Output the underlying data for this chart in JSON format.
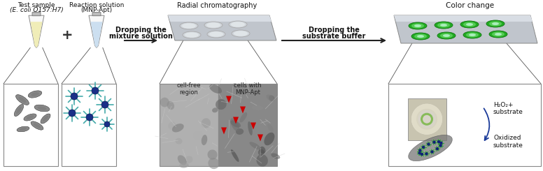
{
  "background_color": "#ffffff",
  "labels": {
    "test_sample_line1": "Test sample",
    "test_sample_line2": "(E. coli O157:H7)",
    "reaction_line1": "Reaction solution",
    "reaction_line2": "(MNP-Apt)",
    "dropping_mixture_line1": "Dropping the",
    "dropping_mixture_line2": "mixture solution",
    "radial_chrom": "Radial chromatography",
    "dropping_substrate_line1": "Dropping the",
    "dropping_substrate_line2": "substrate buffer",
    "color_change": "Color change",
    "cell_free": "cell-free\nregion",
    "cells_with": "cells with\nMNP-Apt",
    "h2o2": "H₂O₂+\nsubstrate",
    "oxidized": "Oxidized\nsubstrate"
  },
  "plus_sign": "+",
  "tube1_color": "#f0edb8",
  "tube2_color": "#ccdff0",
  "tube_cap_color": "#bbbbbb",
  "tube_body_color": "#e8e8e8",
  "plate_color": "#c0c5cc",
  "plate_top_color": "#d8dde4",
  "well_color_empty": "#e0e5e8",
  "well_green_outer": "#22aa22",
  "well_green_inner": "#66cc66",
  "arrow_color": "#222222",
  "box_edge_color": "#888888",
  "bacteria_fill": "#888888",
  "bacteria_edge": "#555555",
  "mnp_core": "#1a2f88",
  "mnp_arm": "#44aaaa",
  "micro_left_bg": "#aaaaaa",
  "micro_right_bg": "#888888",
  "red_arrow_color": "#cc0000",
  "inset_bg": "#c8c4b0",
  "spot_ring_color": "#88bb66",
  "bacteria2_fill": "#666666",
  "bacteria2_mnp_arm": "#33aa33",
  "bacteria2_mnp_core": "#112277",
  "curve_arrow_color": "#1a3a99",
  "line_color": "#555555"
}
